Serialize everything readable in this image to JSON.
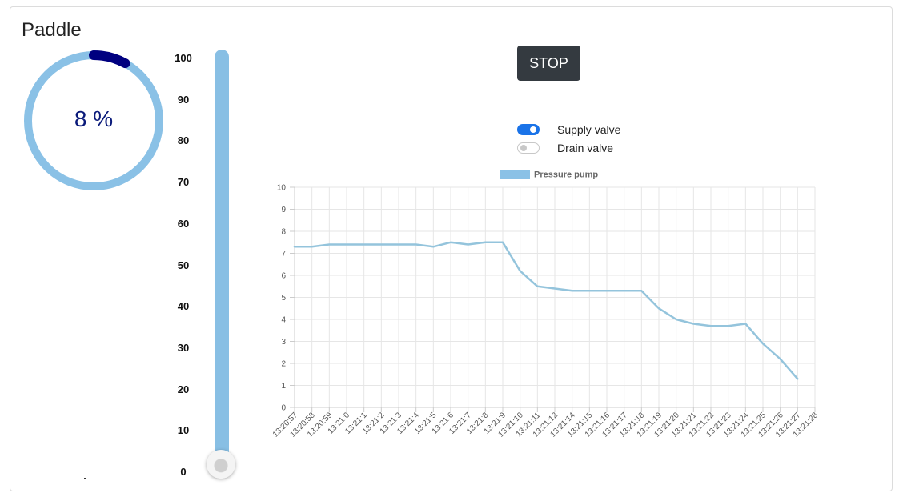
{
  "panel": {
    "title": "Paddle",
    "gauge": {
      "value": 8,
      "display": "8 %",
      "max": 100,
      "track_color": "#8ac1e6",
      "fill_color": "#000080"
    }
  },
  "slider": {
    "scale_labels": [
      "100",
      "90",
      "80",
      "70",
      "60",
      "50",
      "40",
      "30",
      "20",
      "10",
      "0"
    ],
    "value": 0,
    "min": 0,
    "max": 100,
    "color": "#88bfe4"
  },
  "controls": {
    "stop_label": "STOP",
    "valves": [
      {
        "label": "Supply valve",
        "on": true
      },
      {
        "label": "Drain valve",
        "on": false
      }
    ]
  },
  "chart_data": {
    "type": "line",
    "categories": [
      "13:20:57",
      "13:20:58",
      "13:20:59",
      "13:21:0",
      "13:21:1",
      "13:21:2",
      "13:21:3",
      "13:21:4",
      "13:21:5",
      "13:21:6",
      "13:21:7",
      "13:21:8",
      "13:21:9",
      "13:21:10",
      "13:21:11",
      "13:21:12",
      "13:21:14",
      "13:21:15",
      "13:21:16",
      "13:21:17",
      "13:21:18",
      "13:21:19",
      "13:21:20",
      "13:21:21",
      "13:21:22",
      "13:21:23",
      "13:21:24",
      "13:21:25",
      "13:21:26",
      "13:21:27",
      "13:21:28"
    ],
    "series": [
      {
        "name": "Pressure pump",
        "color": "#8ac1e6",
        "line_color": "#94c4dc",
        "values": [
          7.3,
          7.3,
          7.4,
          7.4,
          7.4,
          7.4,
          7.4,
          7.4,
          7.3,
          7.5,
          7.4,
          7.5,
          7.5,
          6.2,
          5.5,
          5.4,
          5.3,
          5.3,
          5.3,
          5.3,
          5.3,
          4.5,
          4.0,
          3.8,
          3.7,
          3.7,
          3.8,
          2.9,
          2.2,
          1.3,
          null
        ]
      }
    ],
    "ylim": [
      0,
      10
    ],
    "yticks": [
      "0",
      "1",
      "2",
      "3",
      "4",
      "5",
      "6",
      "7",
      "8",
      "9",
      "10"
    ],
    "grid": true,
    "legend": "top"
  }
}
